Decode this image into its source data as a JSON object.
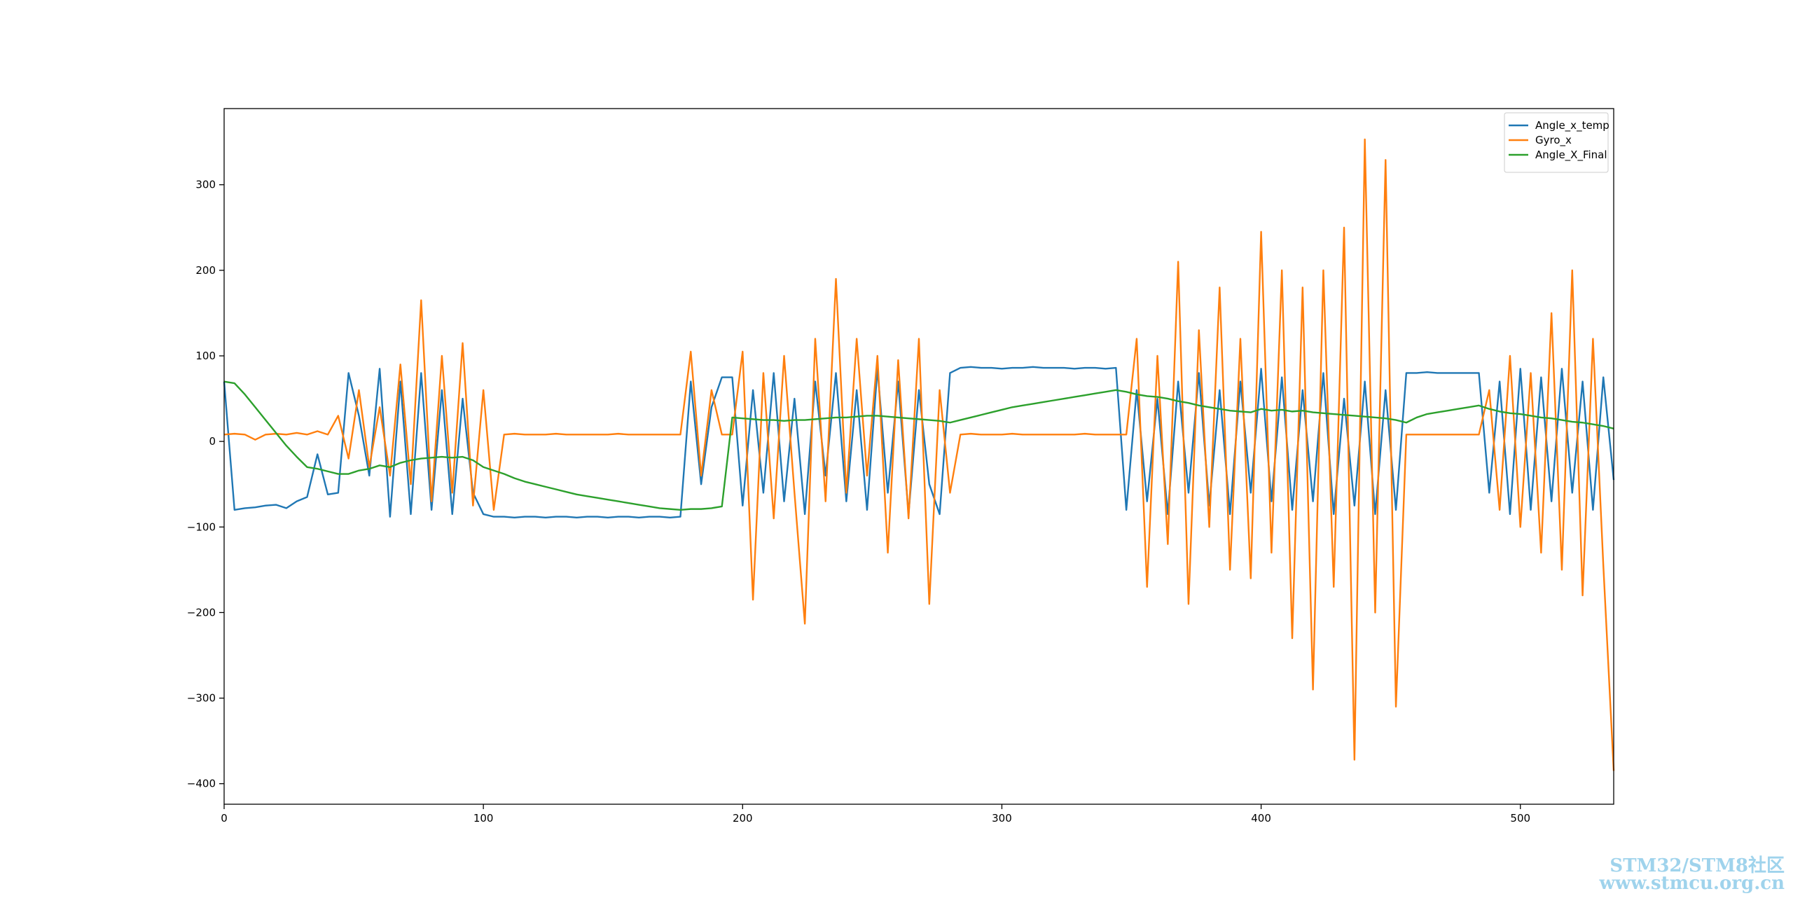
{
  "chart_data": {
    "type": "line",
    "x": [
      0,
      4,
      8,
      12,
      16,
      20,
      24,
      28,
      32,
      36,
      40,
      44,
      48,
      52,
      56,
      60,
      64,
      68,
      72,
      76,
      80,
      84,
      88,
      92,
      96,
      100,
      104,
      108,
      112,
      116,
      120,
      124,
      128,
      132,
      136,
      140,
      144,
      148,
      152,
      156,
      160,
      164,
      168,
      172,
      176,
      180,
      184,
      188,
      192,
      196,
      200,
      204,
      208,
      212,
      216,
      220,
      224,
      228,
      232,
      236,
      240,
      244,
      248,
      252,
      256,
      260,
      264,
      268,
      272,
      276,
      280,
      284,
      288,
      292,
      296,
      300,
      304,
      308,
      312,
      316,
      320,
      324,
      328,
      332,
      336,
      340,
      344,
      348,
      352,
      356,
      360,
      364,
      368,
      372,
      376,
      380,
      384,
      388,
      392,
      396,
      400,
      404,
      408,
      412,
      416,
      420,
      424,
      428,
      432,
      436,
      440,
      444,
      448,
      452,
      456,
      460,
      464,
      468,
      472,
      476,
      480,
      484,
      488,
      492,
      496,
      500,
      504,
      508,
      512,
      516,
      520,
      524,
      528,
      532,
      536
    ],
    "series": [
      {
        "name": "Angle_x_temp",
        "color": "#1f77b4",
        "values": [
          70,
          -80,
          -78,
          -77,
          -75,
          -74,
          -78,
          -70,
          -65,
          -15,
          -62,
          -60,
          80,
          30,
          -40,
          85,
          -88,
          70,
          -85,
          80,
          -80,
          60,
          -85,
          50,
          -60,
          -85,
          -88,
          -88,
          -89,
          -88,
          -88,
          -89,
          -88,
          -88,
          -89,
          -88,
          -88,
          -89,
          -88,
          -88,
          -89,
          -88,
          -88,
          -89,
          -88,
          70,
          -50,
          40,
          75,
          75,
          -75,
          60,
          -60,
          80,
          -70,
          50,
          -85,
          70,
          -40,
          80,
          -70,
          60,
          -80,
          85,
          -60,
          70,
          -85,
          60,
          -50,
          -85,
          80,
          86,
          87,
          86,
          86,
          85,
          86,
          86,
          87,
          86,
          86,
          86,
          85,
          86,
          86,
          85,
          86,
          -80,
          60,
          -70,
          50,
          -85,
          70,
          -60,
          80,
          -75,
          60,
          -85,
          70,
          -60,
          85,
          -70,
          75,
          -80,
          60,
          -70,
          80,
          -85,
          50,
          -75,
          70,
          -85,
          60,
          -80,
          80,
          80,
          81,
          80,
          80,
          80,
          80,
          80,
          -60,
          70,
          -85,
          85,
          -80,
          75,
          -70,
          85,
          -60,
          70,
          -80,
          75,
          -45
        ]
      },
      {
        "name": "Gyro_x",
        "color": "#ff7f0e",
        "values": [
          8,
          9,
          8,
          2,
          8,
          9,
          8,
          10,
          8,
          12,
          8,
          30,
          -20,
          60,
          -30,
          40,
          -40,
          90,
          -50,
          165,
          -70,
          100,
          -60,
          115,
          -75,
          60,
          -80,
          8,
          9,
          8,
          8,
          8,
          9,
          8,
          8,
          8,
          8,
          8,
          9,
          8,
          8,
          8,
          8,
          8,
          8,
          105,
          -40,
          60,
          8,
          8,
          105,
          -185,
          80,
          -90,
          100,
          -60,
          -213,
          120,
          -70,
          190,
          -60,
          120,
          -40,
          100,
          -130,
          95,
          -90,
          120,
          -190,
          60,
          -60,
          8,
          9,
          8,
          8,
          8,
          9,
          8,
          8,
          8,
          8,
          8,
          8,
          9,
          8,
          8,
          8,
          8,
          120,
          -170,
          100,
          -120,
          210,
          -190,
          130,
          -100,
          180,
          -150,
          120,
          -160,
          245,
          -130,
          200,
          -230,
          180,
          -290,
          200,
          -170,
          250,
          -372,
          353,
          -200,
          329,
          -310,
          8,
          8,
          8,
          8,
          8,
          8,
          8,
          8,
          60,
          -80,
          100,
          -100,
          80,
          -130,
          150,
          -150,
          200,
          -180,
          120,
          -145,
          -385
        ]
      },
      {
        "name": "Angle_X_Final",
        "color": "#2ca02c",
        "values": [
          70,
          68,
          55,
          40,
          25,
          10,
          -5,
          -18,
          -30,
          -32,
          -35,
          -38,
          -38,
          -34,
          -32,
          -28,
          -30,
          -25,
          -22,
          -20,
          -19,
          -18,
          -19,
          -18,
          -22,
          -30,
          -34,
          -38,
          -43,
          -47,
          -50,
          -53,
          -56,
          -59,
          -62,
          -64,
          -66,
          -68,
          -70,
          -72,
          -74,
          -76,
          -78,
          -79,
          -80,
          -79,
          -79,
          -78,
          -76,
          28,
          27,
          26,
          25,
          25,
          24,
          25,
          25,
          26,
          27,
          28,
          28,
          29,
          30,
          30,
          29,
          28,
          27,
          26,
          25,
          24,
          22,
          25,
          28,
          31,
          34,
          37,
          40,
          42,
          44,
          46,
          48,
          50,
          52,
          54,
          56,
          58,
          60,
          58,
          55,
          53,
          52,
          50,
          47,
          45,
          42,
          40,
          38,
          36,
          35,
          34,
          38,
          36,
          37,
          35,
          36,
          34,
          33,
          32,
          31,
          30,
          29,
          28,
          27,
          25,
          22,
          28,
          32,
          34,
          36,
          38,
          40,
          42,
          38,
          35,
          33,
          32,
          30,
          28,
          27,
          25,
          23,
          22,
          20,
          18,
          15
        ]
      }
    ],
    "xlim": [
      0,
      536
    ],
    "ylim": [
      -424,
      389
    ],
    "xticks": [
      0,
      100,
      200,
      300,
      400,
      500
    ],
    "yticks": [
      {
        "value": -400,
        "label": "−400"
      },
      {
        "value": -300,
        "label": "−300"
      },
      {
        "value": -200,
        "label": "−200"
      },
      {
        "value": -100,
        "label": "−100"
      },
      0,
      100,
      200,
      300
    ],
    "legend": "upper right"
  },
  "watermark": [
    "STM32/STM8社区",
    "www.stmcu.org.cn"
  ]
}
